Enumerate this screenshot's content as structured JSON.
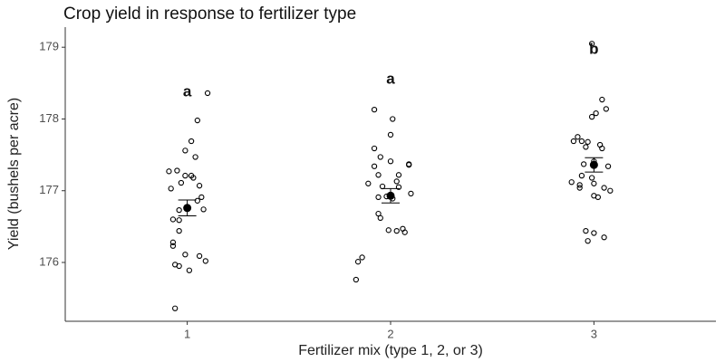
{
  "chart_data": {
    "type": "scatter",
    "title": "Crop yield in response to fertilizer type",
    "x_label": "Fertilizer mix (type 1, 2, or 3)",
    "y_label": "Yield (bushels per acre)",
    "xlim": [
      0.4,
      3.6
    ],
    "xticks": [
      1,
      2,
      3
    ],
    "ylim": [
      175.18,
      179.28
    ],
    "yticks": [
      176,
      177,
      178,
      179
    ],
    "grid": false,
    "series": [
      {
        "color": "#000000",
        "x": [
          1.1,
          1.05,
          1.02,
          1.04,
          0.99,
          0.91,
          0.95,
          0.99,
          1.02,
          1.03,
          0.97,
          0.92,
          1.06,
          1.07,
          1.05,
          1.08,
          0.96,
          0.93,
          0.96,
          0.96,
          0.93,
          0.93,
          0.99,
          1.06,
          1.09,
          0.94,
          0.96,
          1.01,
          0.94,
          1.92,
          2.01,
          2.0,
          1.92,
          1.95,
          2.0,
          2.09,
          2.09,
          1.92,
          1.94,
          2.04,
          2.03,
          1.89,
          1.96,
          2.04,
          2.1,
          1.98,
          1.94,
          2.01,
          1.94,
          1.95,
          2.06,
          2.07,
          1.99,
          2.03,
          1.86,
          1.84,
          1.83,
          2.99,
          3.04,
          3.06,
          3.01,
          2.99,
          2.92,
          2.94,
          2.97,
          2.9,
          3.03,
          3.04,
          2.96,
          3.0,
          2.95,
          3.07,
          2.94,
          2.99,
          2.89,
          2.93,
          3.0,
          3.05,
          3.08,
          2.93,
          3.0,
          3.02,
          2.96,
          3.0,
          3.05,
          2.97
        ],
        "values": [
          178.36,
          177.98,
          177.69,
          177.47,
          177.56,
          177.27,
          177.28,
          177.21,
          177.21,
          177.18,
          177.11,
          177.03,
          177.07,
          176.91,
          176.86,
          176.74,
          176.73,
          176.6,
          176.59,
          176.44,
          176.28,
          176.23,
          176.11,
          176.09,
          176.02,
          175.97,
          175.95,
          175.89,
          175.36,
          178.13,
          178.0,
          177.78,
          177.59,
          177.47,
          177.41,
          177.37,
          177.36,
          177.34,
          177.22,
          177.22,
          177.13,
          177.1,
          177.06,
          177.05,
          176.96,
          176.92,
          176.91,
          176.89,
          176.68,
          176.62,
          176.47,
          176.42,
          176.45,
          176.44,
          176.07,
          176.01,
          175.76,
          179.05,
          178.27,
          178.14,
          178.08,
          178.03,
          177.75,
          177.69,
          177.68,
          177.69,
          177.64,
          177.59,
          177.61,
          177.41,
          177.37,
          177.34,
          177.21,
          177.18,
          177.12,
          177.08,
          177.1,
          177.04,
          177.0,
          177.04,
          176.93,
          176.91,
          176.44,
          176.41,
          176.35,
          176.3
        ]
      }
    ],
    "means": {
      "color": "#000000",
      "x": [
        1,
        2,
        3
      ],
      "values": [
        176.76,
        176.93,
        177.36
      ],
      "errors": [
        0.11,
        0.1,
        0.1
      ]
    },
    "annotations": [
      "a",
      "a",
      "b"
    ]
  }
}
